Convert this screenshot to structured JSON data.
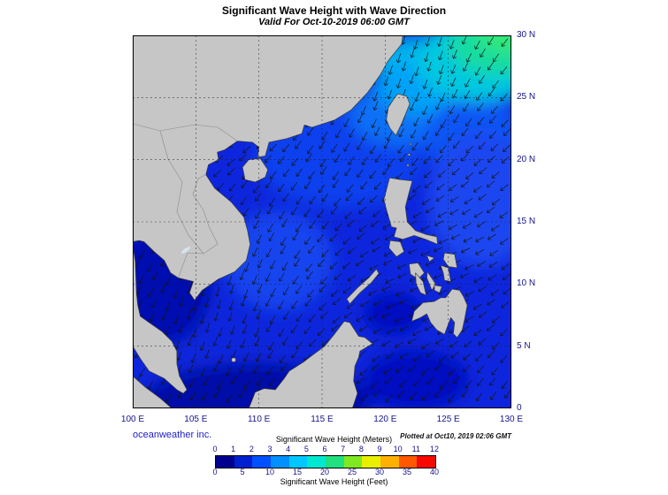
{
  "header": {
    "title": "Significant Wave Height with Wave Direction",
    "subtitle": "Valid For Oct-10-2019 06:00 GMT"
  },
  "footer": {
    "credit": "oceanweather inc.",
    "plotted": "Plotted at Oct10, 2019 02:06 GMT"
  },
  "axes": {
    "lat_labels": [
      "30 N",
      "25 N",
      "20 N",
      "15 N",
      "10 N",
      "5 N",
      "0"
    ],
    "lon_labels": [
      "100 E",
      "105 E",
      "110 E",
      "115 E",
      "120 E",
      "125 E",
      "130 E"
    ]
  },
  "legend": {
    "title_meters": "Significant Wave Height (Meters)",
    "title_feet": "Significant Wave Height (Feet)",
    "meters_ticks": [
      "0",
      "1",
      "2",
      "3",
      "4",
      "5",
      "6",
      "7",
      "8",
      "9",
      "10",
      "11",
      "12"
    ],
    "feet_ticks": [
      "0",
      "5",
      "10",
      "15",
      "20",
      "25",
      "30",
      "35",
      "40"
    ],
    "colors": [
      "#00008f",
      "#0020d0",
      "#0050ff",
      "#0090ff",
      "#00c8ff",
      "#00e8d0",
      "#20e080",
      "#80e820",
      "#e8f000",
      "#ffb000",
      "#ff5800",
      "#f80800"
    ]
  },
  "map": {
    "region": "South China Sea / Western Pacific",
    "land_color": "#c6c6c6",
    "ocean_base_color": "#0d28dd",
    "wave_arrow_general_direction": "southwest"
  }
}
